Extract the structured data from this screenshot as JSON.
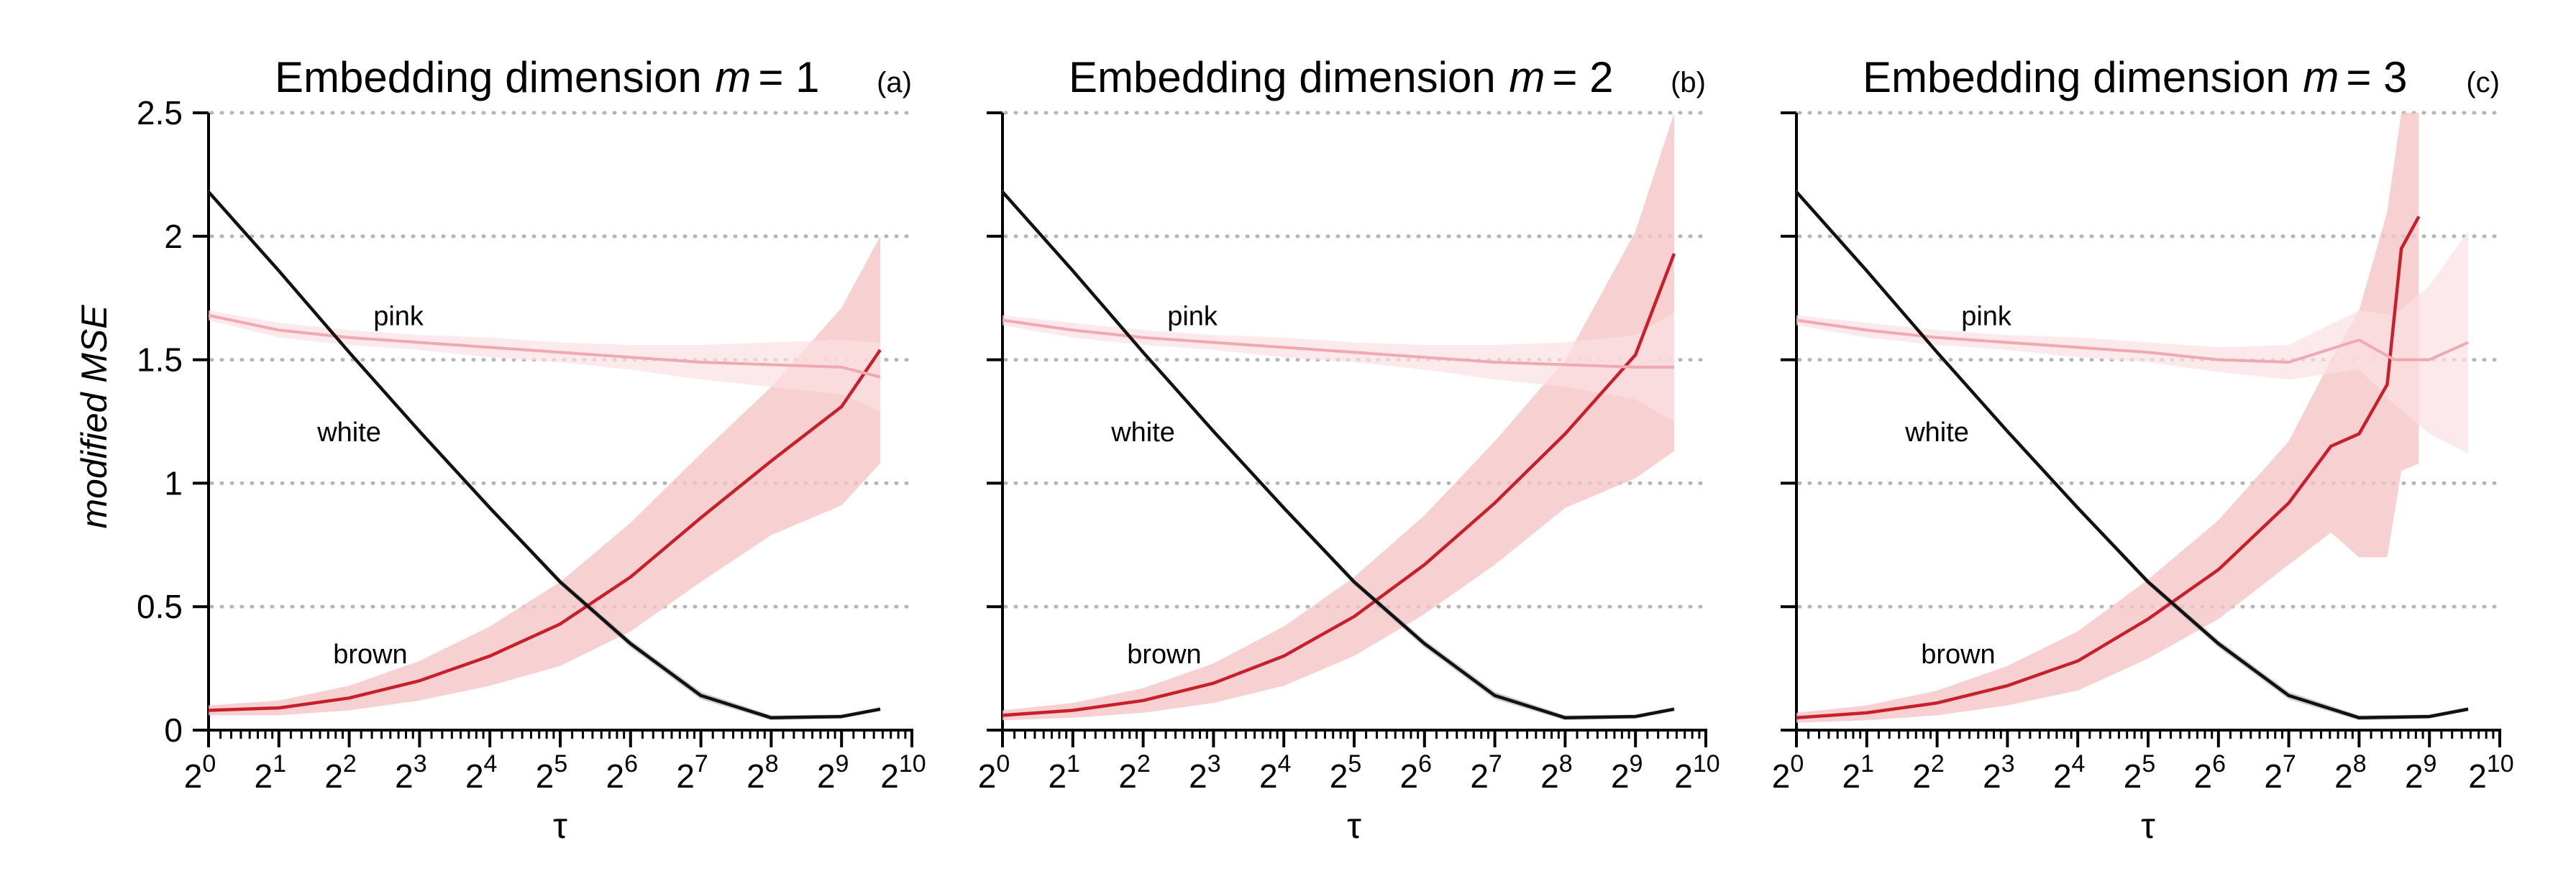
{
  "figure": {
    "ylabel": "modified MSE",
    "xlabel": "τ"
  },
  "chart_data": [
    {
      "type": "line",
      "title": "Embedding dimension m = 1",
      "title_prefix": "Embedding dimension ",
      "title_var": "m",
      "title_value": "= 1",
      "panel_label": "(a)",
      "xlabel": "τ",
      "ylabel": "modified MSE",
      "x_scale": "log2",
      "x_ticks": [
        0,
        1,
        2,
        3,
        4,
        5,
        6,
        7,
        8,
        9,
        10
      ],
      "xlim": [
        0,
        10
      ],
      "ylim": [
        0,
        2.5
      ],
      "y_ticks": [
        0,
        0.5,
        1,
        1.5,
        2,
        2.5
      ],
      "y_tick_labels": [
        "0",
        "0.5",
        "1",
        "1.5",
        "2",
        "2.5"
      ],
      "grid": "horizontal dotted",
      "annotations": [
        {
          "text": "pink",
          "x": 2.7,
          "y": 1.64
        },
        {
          "text": "white",
          "x": 2.0,
          "y": 1.17
        },
        {
          "text": "brown",
          "x": 2.3,
          "y": 0.27
        }
      ],
      "series": [
        {
          "name": "white",
          "color": "#111111",
          "x": [
            0,
            1,
            2,
            3,
            4,
            5,
            6,
            7,
            8,
            9,
            9.55
          ],
          "y": [
            2.18,
            1.86,
            1.53,
            1.21,
            0.9,
            0.6,
            0.35,
            0.14,
            0.05,
            0.055,
            0.085
          ],
          "band_w": [
            0.01,
            0.01,
            0.01,
            0.01,
            0.01,
            0.012,
            0.015,
            0.015,
            0.01,
            0.008,
            0.008
          ]
        },
        {
          "name": "pink",
          "color": "#f0a8b2",
          "x": [
            0,
            1,
            2,
            3,
            4,
            5,
            6,
            7,
            8,
            9,
            9.55
          ],
          "y": [
            1.68,
            1.62,
            1.59,
            1.57,
            1.55,
            1.53,
            1.51,
            1.49,
            1.48,
            1.47,
            1.43
          ],
          "band_w": [
            0.02,
            0.03,
            0.03,
            0.03,
            0.04,
            0.04,
            0.05,
            0.07,
            0.09,
            0.11,
            0.14
          ]
        },
        {
          "name": "brown",
          "color": "#c8202a",
          "x": [
            0,
            1,
            2,
            3,
            4,
            5,
            6,
            7,
            8,
            9,
            9.55
          ],
          "y": [
            0.08,
            0.09,
            0.13,
            0.2,
            0.3,
            0.43,
            0.62,
            0.86,
            1.09,
            1.31,
            1.54
          ],
          "band_w": [
            0.02,
            0.03,
            0.05,
            0.08,
            0.12,
            0.17,
            0.22,
            0.26,
            0.3,
            0.4,
            0.46
          ]
        }
      ]
    },
    {
      "type": "line",
      "title": "Embedding dimension m = 2",
      "title_prefix": "Embedding dimension ",
      "title_var": "m",
      "title_value": "= 2",
      "panel_label": "(b)",
      "xlabel": "τ",
      "ylabel": "modified MSE",
      "x_scale": "log2",
      "x_ticks": [
        0,
        1,
        2,
        3,
        4,
        5,
        6,
        7,
        8,
        9,
        10
      ],
      "xlim": [
        0,
        10
      ],
      "ylim": [
        0,
        2.5
      ],
      "y_ticks": [
        0,
        0.5,
        1,
        1.5,
        2,
        2.5
      ],
      "y_tick_labels": [
        "0",
        "0.5",
        "1",
        "1.5",
        "2",
        "2.5"
      ],
      "grid": "horizontal dotted",
      "annotations": [
        {
          "text": "pink",
          "x": 2.7,
          "y": 1.64
        },
        {
          "text": "white",
          "x": 2.0,
          "y": 1.17
        },
        {
          "text": "brown",
          "x": 2.3,
          "y": 0.27
        }
      ],
      "series": [
        {
          "name": "white",
          "color": "#111111",
          "x": [
            0,
            1,
            2,
            3,
            4,
            5,
            6,
            7,
            8,
            9,
            9.55
          ],
          "y": [
            2.18,
            1.86,
            1.53,
            1.21,
            0.9,
            0.6,
            0.35,
            0.14,
            0.05,
            0.055,
            0.085
          ],
          "band_w": [
            0.01,
            0.01,
            0.01,
            0.01,
            0.01,
            0.012,
            0.015,
            0.015,
            0.01,
            0.008,
            0.008
          ]
        },
        {
          "name": "pink",
          "color": "#f0a8b2",
          "x": [
            0,
            1,
            2,
            3,
            4,
            5,
            6,
            7,
            8,
            9,
            9.55
          ],
          "y": [
            1.66,
            1.62,
            1.59,
            1.57,
            1.55,
            1.53,
            1.51,
            1.49,
            1.48,
            1.47,
            1.47
          ],
          "band_w": [
            0.02,
            0.03,
            0.03,
            0.03,
            0.04,
            0.04,
            0.05,
            0.07,
            0.09,
            0.13,
            0.22
          ]
        },
        {
          "name": "brown",
          "color": "#c8202a",
          "x": [
            0,
            1,
            2,
            3,
            4,
            5,
            6,
            7,
            8,
            9,
            9.55
          ],
          "y": [
            0.06,
            0.08,
            0.12,
            0.19,
            0.3,
            0.46,
            0.67,
            0.92,
            1.2,
            1.52,
            1.93
          ],
          "band_w": [
            0.02,
            0.03,
            0.05,
            0.08,
            0.12,
            0.16,
            0.2,
            0.25,
            0.3,
            0.5,
            0.8
          ]
        }
      ]
    },
    {
      "type": "line",
      "title": "Embedding dimension m = 3",
      "title_prefix": "Embedding dimension ",
      "title_var": "m",
      "title_value": "= 3",
      "panel_label": "(c)",
      "xlabel": "τ",
      "ylabel": "modified MSE",
      "x_scale": "log2",
      "x_ticks": [
        0,
        1,
        2,
        3,
        4,
        5,
        6,
        7,
        8,
        9,
        10
      ],
      "xlim": [
        0,
        10
      ],
      "ylim": [
        0,
        2.5
      ],
      "y_ticks": [
        0,
        0.5,
        1,
        1.5,
        2,
        2.5
      ],
      "y_tick_labels": [
        "0",
        "0.5",
        "1",
        "1.5",
        "2",
        "2.5"
      ],
      "grid": "horizontal dotted",
      "annotations": [
        {
          "text": "pink",
          "x": 2.7,
          "y": 1.64
        },
        {
          "text": "white",
          "x": 2.0,
          "y": 1.17
        },
        {
          "text": "brown",
          "x": 2.3,
          "y": 0.27
        }
      ],
      "series": [
        {
          "name": "white",
          "color": "#111111",
          "x": [
            0,
            1,
            2,
            3,
            4,
            5,
            6,
            7,
            8,
            9,
            9.55
          ],
          "y": [
            2.18,
            1.86,
            1.53,
            1.21,
            0.9,
            0.6,
            0.35,
            0.14,
            0.05,
            0.055,
            0.085
          ],
          "band_w": [
            0.01,
            0.01,
            0.01,
            0.01,
            0.01,
            0.012,
            0.015,
            0.015,
            0.01,
            0.008,
            0.008
          ]
        },
        {
          "name": "pink",
          "color": "#f0a8b2",
          "x": [
            0,
            1,
            2,
            3,
            4,
            5,
            6,
            7,
            8,
            8.5,
            9,
            9.55
          ],
          "y": [
            1.66,
            1.62,
            1.59,
            1.57,
            1.55,
            1.53,
            1.5,
            1.49,
            1.58,
            1.5,
            1.5,
            1.57
          ],
          "band_w": [
            0.02,
            0.03,
            0.03,
            0.03,
            0.04,
            0.04,
            0.05,
            0.07,
            0.12,
            0.18,
            0.3,
            0.45
          ]
        },
        {
          "name": "brown",
          "color": "#c8202a",
          "x": [
            0,
            1,
            2,
            3,
            4,
            5,
            6,
            7,
            7.6,
            8,
            8.4,
            8.6,
            8.85
          ],
          "y": [
            0.05,
            0.07,
            0.11,
            0.18,
            0.28,
            0.45,
            0.65,
            0.92,
            1.15,
            1.2,
            1.4,
            1.95,
            2.08
          ],
          "band_w": [
            0.02,
            0.03,
            0.05,
            0.08,
            0.12,
            0.16,
            0.2,
            0.25,
            0.35,
            0.5,
            0.7,
            0.9,
            1.0
          ]
        }
      ]
    }
  ]
}
